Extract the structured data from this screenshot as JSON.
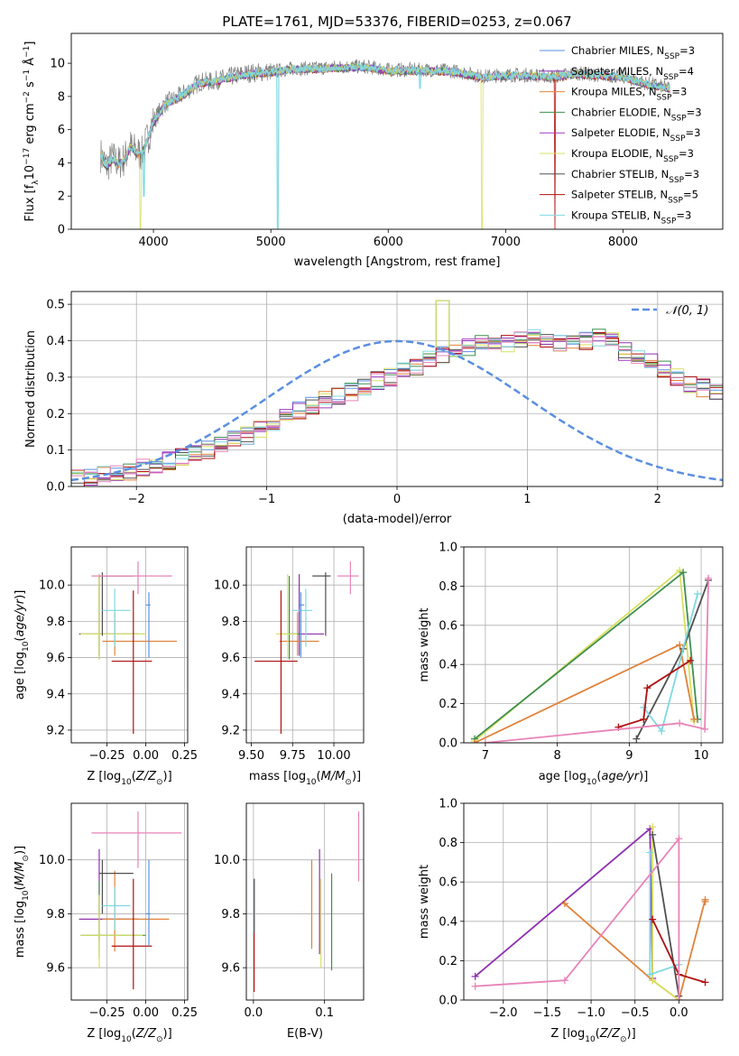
{
  "series_colors": {
    "chabrier_miles": "#5b8fe0",
    "salpeter_miles": "#8f2fb0",
    "kroupa_miles": "#e0823a",
    "chabrier_elodie": "#3f8f4f",
    "salpeter_elodie": "#a03cc0",
    "kroupa_elodie": "#d8e060",
    "chabrier_stelib": "#505050",
    "salpeter_stelib": "#b01010",
    "kroupa_stelib": "#7fd8e0",
    "pink": "#e884b8",
    "normal_curve": "#5b8fe0"
  },
  "chart_data": [
    {
      "id": "spectrum",
      "type": "line",
      "title": "PLATE=1761, MJD=53376, FIBERID=0253, z=0.067",
      "xlabel": "wavelength [Angstrom, rest frame]",
      "ylabel": "Flux [f_λ10^{-17} erg cm^{-2} s^{-1} Å^{-1}]",
      "xlim": [
        3300,
        8850
      ],
      "ylim": [
        0,
        11.8
      ],
      "xticks": [
        "4000",
        "5000",
        "6000",
        "7000",
        "8000"
      ],
      "yticks": [
        "0",
        "2",
        "4",
        "6",
        "8",
        "10"
      ],
      "grid": false,
      "legend_position": "top-right",
      "legend": [
        {
          "label": "Chabrier MILES, N_SSP=3",
          "color_key": "chabrier_miles"
        },
        {
          "label": "Salpeter MILES, N_SSP=4",
          "color_key": "salpeter_miles"
        },
        {
          "label": "Kroupa MILES, N_SSP=3",
          "color_key": "kroupa_miles"
        },
        {
          "label": "Chabrier ELODIE, N_SSP=3",
          "color_key": "chabrier_elodie"
        },
        {
          "label": "Salpeter ELODIE, N_SSP=3",
          "color_key": "salpeter_elodie"
        },
        {
          "label": "Kroupa ELODIE, N_SSP=3",
          "color_key": "kroupa_elodie"
        },
        {
          "label": "Chabrier STELIB, N_SSP=3",
          "color_key": "chabrier_stelib"
        },
        {
          "label": "Salpeter STELIB, N_SSP=5",
          "color_key": "salpeter_stelib"
        },
        {
          "label": "Kroupa STELIB, N_SSP=3",
          "color_key": "kroupa_stelib"
        }
      ],
      "continuum": {
        "x": [
          3550,
          3600,
          3650,
          3700,
          3750,
          3800,
          3850,
          3900,
          3950,
          4000,
          4100,
          4200,
          4300,
          4400,
          4500,
          4600,
          4800,
          5000,
          5200,
          5400,
          5600,
          5800,
          6000,
          6200,
          6400,
          6600,
          6800,
          7000,
          7200,
          7400,
          7600,
          7800,
          8000,
          8200,
          8400
        ],
        "y": [
          4.5,
          3.8,
          4.3,
          4.0,
          4.2,
          5.0,
          4.7,
          4.5,
          5.5,
          6.5,
          7.6,
          7.9,
          8.4,
          8.9,
          8.9,
          9.1,
          9.4,
          9.5,
          9.7,
          9.7,
          9.8,
          9.8,
          9.6,
          9.6,
          9.6,
          9.5,
          9.2,
          9.3,
          9.3,
          9.2,
          9.4,
          9.3,
          9.2,
          8.8,
          8.5
        ]
      },
      "absorption_spikes_kroupa_stelib": [
        {
          "x": 3920,
          "y": 2.0
        },
        {
          "x": 5060,
          "y": 0.0
        },
        {
          "x": 6270,
          "y": 8.5
        }
      ],
      "absorption_spikes_kroupa_elodie": [
        {
          "x": 3890,
          "y": 0.0
        },
        {
          "x": 6800,
          "y": 0.0
        }
      ],
      "absorption_spikes_salpeter_stelib": [
        {
          "x": 7420,
          "y": 0.0
        }
      ]
    },
    {
      "id": "residuals",
      "type": "histogram",
      "xlabel": "(data-model)/error",
      "ylabel": "Normed distribution",
      "xlim": [
        -2.5,
        2.5
      ],
      "ylim": [
        0,
        0.535
      ],
      "xticks": [
        "−2",
        "−1",
        "0",
        "1",
        "2"
      ],
      "yticks": [
        "0.0",
        "0.1",
        "0.2",
        "0.3",
        "0.4",
        "0.5"
      ],
      "grid": true,
      "legend_position": "top-right",
      "legend": [
        {
          "label": "𝒩(0, 1)",
          "color_key": "normal_curve",
          "style": "dashed"
        }
      ],
      "bin_width": 0.1,
      "bin_start": -2.5,
      "reference_counts": [
        0.02,
        0.025,
        0.03,
        0.035,
        0.04,
        0.05,
        0.06,
        0.07,
        0.08,
        0.09,
        0.1,
        0.12,
        0.13,
        0.14,
        0.16,
        0.17,
        0.19,
        0.21,
        0.22,
        0.24,
        0.25,
        0.26,
        0.27,
        0.29,
        0.3,
        0.32,
        0.33,
        0.35,
        0.36,
        0.37,
        0.38,
        0.39,
        0.4,
        0.39,
        0.4,
        0.41,
        0.4,
        0.39,
        0.39,
        0.4,
        0.41,
        0.4,
        0.37,
        0.36,
        0.34,
        0.32,
        0.3,
        0.28,
        0.27,
        0.26,
        0.24
      ]
    },
    {
      "id": "age_vs_Z",
      "type": "errorbar",
      "xlabel": "Z [log10(Z/Z☉)]",
      "ylabel": "age [log10(age/yr)]",
      "xlim": [
        -0.48,
        0.27
      ],
      "ylim": [
        9.13,
        10.21
      ],
      "xticks": [
        "−0.25",
        "0.00",
        "0.25"
      ],
      "yticks": [
        "9.2",
        "9.4",
        "9.6",
        "9.8",
        "10.0"
      ],
      "grid": true,
      "points": [
        {
          "x": -0.3,
          "y": 9.73,
          "xerr": [
            0.13,
            0.25
          ],
          "yerr": [
            0.12,
            0.33
          ],
          "color_key": "salpeter_miles"
        },
        {
          "x": -0.2,
          "y": 9.69,
          "xerr": [
            0.08,
            0.4
          ],
          "yerr": [
            0.08,
            0.16
          ],
          "color_key": "kroupa_miles"
        },
        {
          "x": -0.3,
          "y": 9.73,
          "xerr": [
            0.12,
            0.3
          ],
          "yerr": [
            0.14,
            0.32
          ],
          "color_key": "chabrier_elodie"
        },
        {
          "x": -0.3,
          "y": 9.73,
          "xerr": [
            0.12,
            0.3
          ],
          "yerr": [
            0.14,
            0.33
          ],
          "color_key": "kroupa_elodie"
        },
        {
          "x": -0.28,
          "y": 10.05,
          "xerr": [
            0.02,
            0.2
          ],
          "yerr": [
            0.33,
            0.02
          ],
          "color_key": "chabrier_stelib"
        },
        {
          "x": -0.08,
          "y": 9.58,
          "xerr": [
            0.14,
            0.12
          ],
          "yerr": [
            0.4,
            0.39
          ],
          "color_key": "salpeter_stelib"
        },
        {
          "x": -0.2,
          "y": 9.86,
          "xerr": [
            0.08,
            0.1
          ],
          "yerr": [
            0.2,
            0.12
          ],
          "color_key": "kroupa_stelib"
        },
        {
          "x": 0.02,
          "y": 9.89,
          "xerr": [
            0.02,
            0.01
          ],
          "yerr": [
            0.29,
            0.07
          ],
          "color_key": "chabrier_miles"
        },
        {
          "x": -0.05,
          "y": 10.05,
          "xerr": [
            0.3,
            0.22
          ],
          "yerr": [
            0.1,
            0.08
          ],
          "color_key": "pink"
        }
      ]
    },
    {
      "id": "age_vs_mass",
      "type": "errorbar",
      "xlabel": "mass [log10(M/M☉)]",
      "ylabel": "",
      "xlim": [
        9.47,
        10.18
      ],
      "ylim": [
        9.13,
        10.21
      ],
      "xticks": [
        "9.50",
        "9.75",
        "10.00"
      ],
      "yticks": [
        "9.2",
        "9.4",
        "9.6",
        "9.8",
        "10.0"
      ],
      "grid": true,
      "points": [
        {
          "x": 9.79,
          "y": 9.73,
          "xerr": [
            0.06,
            0.15
          ],
          "yerr": [
            0.12,
            0.33
          ],
          "color_key": "salpeter_miles"
        },
        {
          "x": 9.78,
          "y": 9.69,
          "xerr": [
            0.11,
            0.13
          ],
          "yerr": [
            0.08,
            0.16
          ],
          "color_key": "kroupa_miles"
        },
        {
          "x": 9.73,
          "y": 9.73,
          "xerr": [
            0.05,
            0.07
          ],
          "yerr": [
            0.14,
            0.32
          ],
          "color_key": "chabrier_elodie"
        },
        {
          "x": 9.72,
          "y": 9.73,
          "xerr": [
            0.07,
            0.06
          ],
          "yerr": [
            0.14,
            0.33
          ],
          "color_key": "kroupa_elodie"
        },
        {
          "x": 9.95,
          "y": 10.05,
          "xerr": [
            0.08,
            0.03
          ],
          "yerr": [
            0.33,
            0.02
          ],
          "color_key": "chabrier_stelib"
        },
        {
          "x": 9.68,
          "y": 9.58,
          "xerr": [
            0.16,
            0.1
          ],
          "yerr": [
            0.4,
            0.39
          ],
          "color_key": "salpeter_stelib"
        },
        {
          "x": 9.83,
          "y": 9.86,
          "xerr": [
            0.08,
            0.04
          ],
          "yerr": [
            0.2,
            0.12
          ],
          "color_key": "kroupa_stelib"
        },
        {
          "x": 9.8,
          "y": 9.89,
          "xerr": [
            0.01,
            0.02
          ],
          "yerr": [
            0.29,
            0.07
          ],
          "color_key": "chabrier_miles"
        },
        {
          "x": 10.1,
          "y": 10.05,
          "xerr": [
            0.08,
            0.05
          ],
          "yerr": [
            0.1,
            0.08
          ],
          "color_key": "pink"
        }
      ]
    },
    {
      "id": "weight_vs_age",
      "type": "line",
      "xlabel": "age [log10(age/yr)]",
      "ylabel": "mass weight",
      "xlim": [
        6.7,
        10.3
      ],
      "ylim": [
        0.0,
        1.0
      ],
      "xticks": [
        "7",
        "8",
        "9",
        "10"
      ],
      "yticks": [
        "0.0",
        "0.2",
        "0.4",
        "0.6",
        "0.8",
        "1.0"
      ],
      "grid": true,
      "series": [
        {
          "color_key": "kroupa_elodie",
          "x": [
            6.85,
            9.7,
            9.9
          ],
          "y": [
            0.01,
            0.88,
            0.11
          ]
        },
        {
          "color_key": "chabrier_elodie",
          "x": [
            6.85,
            9.75,
            9.95
          ],
          "y": [
            0.02,
            0.87,
            0.12
          ]
        },
        {
          "color_key": "kroupa_miles",
          "x": [
            6.85,
            9.7,
            9.9
          ],
          "y": [
            0.0,
            0.5,
            0.12
          ]
        },
        {
          "color_key": "chabrier_stelib",
          "x": [
            9.1,
            9.75,
            10.1
          ],
          "y": [
            0.02,
            0.48,
            0.83
          ]
        },
        {
          "color_key": "kroupa_stelib",
          "x": [
            9.2,
            9.45,
            9.95
          ],
          "y": [
            0.18,
            0.06,
            0.76
          ]
        },
        {
          "color_key": "salpeter_stelib",
          "x": [
            8.85,
            9.2,
            9.25,
            9.85
          ],
          "y": [
            0.08,
            0.12,
            0.28,
            0.42
          ]
        },
        {
          "color_key": "pink",
          "x": [
            7.0,
            9.7,
            10.05,
            10.1
          ],
          "y": [
            0.0,
            0.1,
            0.07,
            0.84
          ]
        }
      ]
    },
    {
      "id": "mass_vs_Z",
      "type": "errorbar",
      "xlabel": "Z [log10(Z/Z☉)]",
      "ylabel": "mass [log10(M/M☉)]",
      "xlim": [
        -0.48,
        0.27
      ],
      "ylim": [
        9.48,
        10.21
      ],
      "xticks": [
        "−0.25",
        "0.00",
        "0.25"
      ],
      "yticks": [
        "9.6",
        "9.8",
        "10.0"
      ],
      "grid": true,
      "points": [
        {
          "x": -0.3,
          "y": 9.78,
          "xerr": [
            0.13,
            0.25
          ],
          "yerr": [
            0.08,
            0.26
          ],
          "color_key": "salpeter_miles"
        },
        {
          "x": -0.2,
          "y": 9.78,
          "xerr": [
            0.08,
            0.35
          ],
          "yerr": [
            0.12,
            0.18
          ],
          "color_key": "kroupa_miles"
        },
        {
          "x": -0.3,
          "y": 9.72,
          "xerr": [
            0.12,
            0.3
          ],
          "yerr": [
            0.08,
            0.2
          ],
          "color_key": "chabrier_elodie"
        },
        {
          "x": -0.3,
          "y": 9.72,
          "xerr": [
            0.12,
            0.28
          ],
          "yerr": [
            0.12,
            0.15
          ],
          "color_key": "kroupa_elodie"
        },
        {
          "x": -0.28,
          "y": 9.95,
          "xerr": [
            0.02,
            0.2
          ],
          "yerr": [
            0.15,
            0.05
          ],
          "color_key": "chabrier_stelib"
        },
        {
          "x": -0.08,
          "y": 9.68,
          "xerr": [
            0.14,
            0.12
          ],
          "yerr": [
            0.16,
            0.25
          ],
          "color_key": "salpeter_stelib"
        },
        {
          "x": -0.2,
          "y": 9.83,
          "xerr": [
            0.08,
            0.1
          ],
          "yerr": [
            0.09,
            0.07
          ],
          "color_key": "kroupa_stelib"
        },
        {
          "x": 0.02,
          "y": 9.8,
          "xerr": [
            0.02,
            0.01
          ],
          "yerr": [
            0.12,
            0.2
          ],
          "color_key": "chabrier_miles"
        },
        {
          "x": -0.05,
          "y": 10.1,
          "xerr": [
            0.3,
            0.28
          ],
          "yerr": [
            0.13,
            0.08
          ],
          "color_key": "pink"
        }
      ]
    },
    {
      "id": "mass_vs_ebv",
      "type": "errorbar",
      "xlabel": "E(B-V)",
      "ylabel": "",
      "xlim": [
        -0.01,
        0.155
      ],
      "ylim": [
        9.48,
        10.21
      ],
      "xticks": [
        "0.0",
        "0.1"
      ],
      "yticks": [
        "9.6",
        "9.8",
        "10.0"
      ],
      "grid": true,
      "points": [
        {
          "x": 0.001,
          "y": 9.8,
          "yerr": [
            0.29,
            0.13
          ],
          "color_key": "salpeter_stelib"
        },
        {
          "x": 0.002,
          "y": 9.85,
          "yerr": [
            0.12,
            0.08
          ],
          "color_key": "kroupa_stelib"
        },
        {
          "x": 0.082,
          "y": 9.85,
          "yerr": [
            0.18,
            0.15
          ],
          "color_key": "kroupa_miles"
        },
        {
          "x": 0.093,
          "y": 9.9,
          "yerr": [
            0.25,
            0.14
          ],
          "color_key": "salpeter_miles"
        },
        {
          "x": 0.095,
          "y": 9.75,
          "yerr": [
            0.15,
            0.18
          ],
          "color_key": "kroupa_elodie"
        },
        {
          "x": 0.11,
          "y": 9.77,
          "yerr": [
            0.18,
            0.18
          ],
          "color_key": "chabrier_elodie"
        },
        {
          "x": 0.148,
          "y": 10.05,
          "yerr": [
            0.13,
            0.13
          ],
          "color_key": "pink"
        }
      ]
    },
    {
      "id": "weight_vs_Z",
      "type": "line",
      "xlabel": "Z [log10(Z/Z☉)]",
      "ylabel": "mass weight",
      "xlim": [
        -2.45,
        0.5
      ],
      "ylim": [
        0.0,
        1.0
      ],
      "xticks": [
        "−2.0",
        "−1.5",
        "−1.0",
        "−0.5",
        "0.0"
      ],
      "yticks": [
        "0.0",
        "0.2",
        "0.4",
        "0.6",
        "0.8",
        "1.0"
      ],
      "grid": true,
      "series": [
        {
          "color_key": "salpeter_miles",
          "x": [
            -2.32,
            -0.33,
            -0.3
          ],
          "y": [
            0.12,
            0.87,
            0.11
          ]
        },
        {
          "color_key": "kroupa_miles",
          "x": [
            -1.3,
            -0.3,
            0.0,
            0.3,
            0.3
          ],
          "y": [
            0.49,
            0.1,
            0.0,
            0.51,
            0.5
          ]
        },
        {
          "color_key": "kroupa_elodie",
          "x": [
            -0.3,
            -0.3,
            0.0
          ],
          "y": [
            0.88,
            0.1,
            0.0
          ]
        },
        {
          "color_key": "chabrier_stelib",
          "x": [
            -0.3,
            0.0
          ],
          "y": [
            0.84,
            0.02
          ]
        },
        {
          "color_key": "kroupa_stelib",
          "x": [
            -0.33,
            -0.33,
            0.0
          ],
          "y": [
            0.75,
            0.13,
            0.18
          ]
        },
        {
          "color_key": "salpeter_stelib",
          "x": [
            -0.3,
            0.0,
            0.3
          ],
          "y": [
            0.41,
            0.13,
            0.09
          ]
        },
        {
          "color_key": "pink",
          "x": [
            -2.32,
            -1.3,
            0.0,
            0.0
          ],
          "y": [
            0.07,
            0.1,
            0.82,
            0.0
          ]
        }
      ]
    }
  ]
}
